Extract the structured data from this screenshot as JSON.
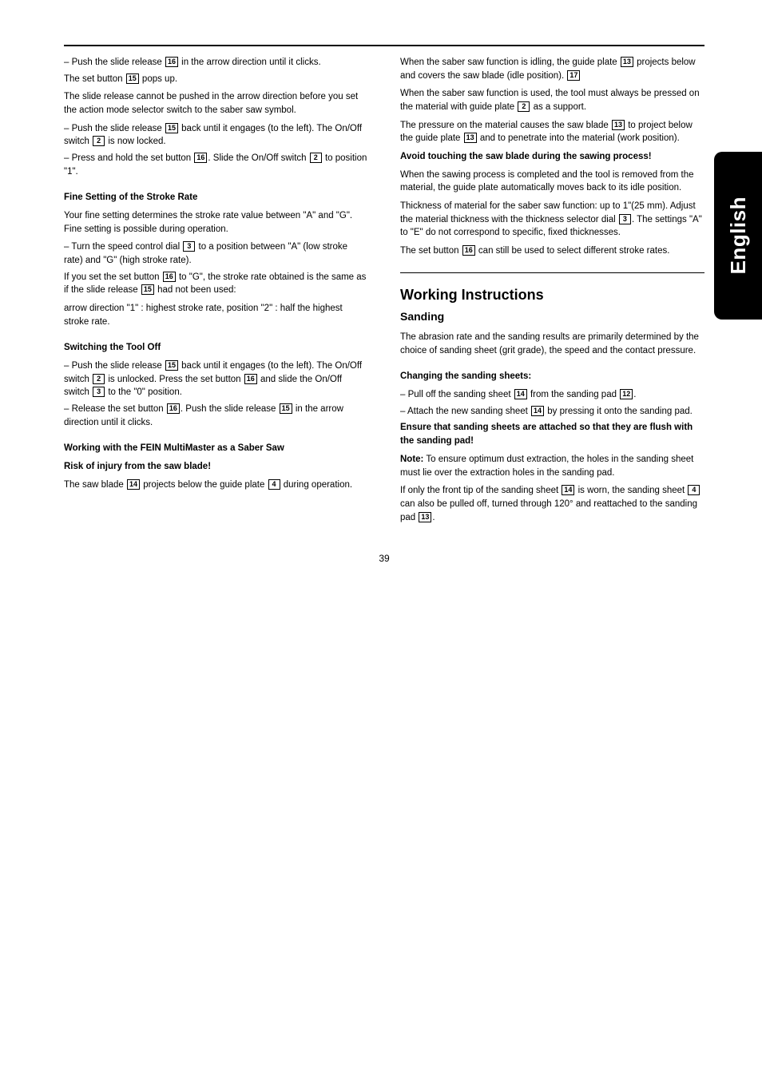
{
  "sideTab": "English",
  "pageNumber": "39",
  "refs": {
    "r2": "2",
    "r3": "3",
    "r4": "4",
    "r12": "12",
    "r13": "13",
    "r14": "14",
    "r15": "15",
    "r16": "16",
    "r17": "17"
  },
  "left": {
    "p1a": "Push the slide release ",
    "p1b": " in the arrow direction until it clicks.",
    "p2a": "The set button ",
    "p2b": " pops up.",
    "p3": "The slide release cannot be pushed in the arrow direction before you set the action mode selector switch to the saber saw symbol.",
    "p4a": "Push the slide release ",
    "p4b": " back until it engages (to the left). The On/Off switch ",
    "p4c": " is now locked.",
    "p5a": "Press and hold the set button ",
    "p5b": ". Slide the On/Off switch ",
    "p5c": " to position \"1\".",
    "h_fine": "Fine Setting of the Stroke Rate",
    "p6": "Your fine setting determines the stroke rate value between \"A\" and \"G\". Fine setting is possible during operation.",
    "p7a": "Turn the speed control dial ",
    "p7b": " to a position between \"A\" (low stroke rate) and \"G\" (high stroke rate).",
    "p8a": "If you set the set button ",
    "p8b": " to \"G\", the stroke rate obtained is the same as if the slide release ",
    "p8c": " had not been used:",
    "p9": "arrow direction \"1\" : highest stroke rate, position \"2\" : half the highest stroke rate.",
    "h_switchoff": "Switching the Tool Off",
    "p10a": "Push the slide release ",
    "p10b": " back until it engages (to the left). The On/Off switch ",
    "p10c": " is unlocked. Press the set button ",
    "p10d": " and slide the On/Off switch ",
    "p10e": " to the \"0\" position.",
    "p11a": "Release the set button ",
    "p11b": ". Push the slide release ",
    "p11c": " in the arrow direction until it clicks.",
    "h_saw": "Working with the FEIN MultiMaster as a Saber Saw",
    "p12": "Risk of injury from the saw blade!",
    "p13a": "The saw blade ",
    "p13b": " projects below the guide plate ",
    "p13c": " during operation."
  },
  "right": {
    "p1a": "When the saber saw function is idling, the guide plate ",
    "p1b": " projects below and covers the saw blade (idle position).",
    "p2a": "When the saber saw function is used, the tool must always be pressed on the material with guide plate ",
    "p2b": " as a support.",
    "p3a": "The pressure on the material causes the saw blade ",
    "p3b": " to project below the guide plate ",
    "p3c": " and to penetrate into the material (work position).",
    "p4": "Avoid touching the saw blade during the sawing process!",
    "p5": "When the sawing process is completed and the tool is removed from the material, the guide plate automatically moves back to its idle position.",
    "p6a": "Thickness of material for the saber saw function: up to 1\"(25 mm). Adjust the material thickness with the thickness selector dial ",
    "p6b": ". The settings \"A\" to \"E\" do not correspond to specific, fixed thicknesses.",
    "p7a": "The set button ",
    "p7b": " can still be used to select different stroke rates.",
    "h_main": "Working Instructions",
    "h_sub": "Sanding",
    "p8": "The abrasion rate and the sanding results are primarily determined by the choice of sanding sheet (grit grade), the speed and the contact pressure.",
    "h_change": "Changing the sanding sheets:",
    "p9a": "Pull off the sanding sheet ",
    "p9b": " from the sanding pad ",
    "p9c": ".",
    "p10a": "Attach the new sanding sheet ",
    "p10b": " by pressing it onto the sanding pad.",
    "p11": "Ensure that sanding sheets are attached so that they are flush with the sanding pad!",
    "note_label": "Note:",
    "note_text": " To ensure optimum dust extraction, the holes in the sanding sheet must lie over the extraction holes in the sanding pad.",
    "p12a": "If only the front tip of the sanding sheet ",
    "p12b": " is worn, the sanding sheet ",
    "p12c": " can also be pulled off, turned through 120° and reattached to the sanding pad ",
    "p12d": "."
  }
}
